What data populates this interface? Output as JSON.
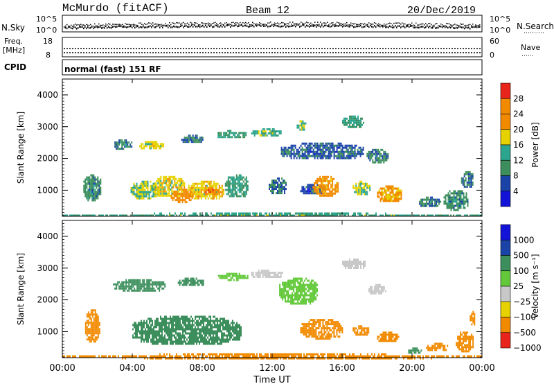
{
  "header": {
    "station": "McMurdo (fitACF)",
    "beam": "Beam 12",
    "date": "20/Dec/2019"
  },
  "noise_panel": {
    "left_label": "N.Sky",
    "right_label": "N.Search",
    "top_tick": "10^5",
    "bottom_tick": "10^0"
  },
  "freq_panel": {
    "left_label_1": "Freq.",
    "left_label_2": "[MHz]",
    "left_top": "18",
    "left_bottom": "8",
    "right_top": "60",
    "right_bottom": "0",
    "right_label": "Nave"
  },
  "cpid_panel": {
    "label": "CPID",
    "mode": "normal (fast) 151 RF"
  },
  "colors": {
    "dark_blue": "#1a43a8",
    "teal": "#2ca58f",
    "green": "#3c8f5c",
    "yellow": "#e6d200",
    "orange": "#f28a00",
    "red": "#e8241b",
    "gray": "#c8c8c8",
    "light_green": "#63c93a",
    "blue": "#1313d8"
  },
  "chart_data": [
    {
      "type": "heatmap",
      "name": "power",
      "ylabel": "Slant Range [km]",
      "xlabel": "Time UT",
      "yticks": [
        "1000",
        "2000",
        "3000",
        "4000"
      ],
      "ylim": [
        180,
        4500
      ],
      "xticks": [
        "00:00",
        "04:00",
        "08:00",
        "12:00",
        "16:00",
        "20:00",
        "00:00"
      ],
      "xlim": [
        0,
        24
      ],
      "colorbar": {
        "label": "Power [dB]",
        "ticks": [
          "4",
          "8",
          "12",
          "16",
          "20",
          "24",
          "28"
        ],
        "range": [
          0,
          30
        ]
      },
      "regions": [
        {
          "t": [
            1.2,
            2.2
          ],
          "r": [
            700,
            1500
          ],
          "v": 10
        },
        {
          "t": [
            3.9,
            5.5
          ],
          "r": [
            750,
            1300
          ],
          "v": 16
        },
        {
          "t": [
            5.2,
            7.0
          ],
          "r": [
            800,
            1450
          ],
          "v": 18
        },
        {
          "t": [
            6.2,
            7.4
          ],
          "r": [
            650,
            1050
          ],
          "v": 24
        },
        {
          "t": [
            7.2,
            9.2
          ],
          "r": [
            720,
            1300
          ],
          "v": 19
        },
        {
          "t": [
            8.1,
            8.9
          ],
          "r": [
            850,
            1100
          ],
          "v": 26
        },
        {
          "t": [
            9.3,
            10.6
          ],
          "r": [
            800,
            1500
          ],
          "v": 12
        },
        {
          "t": [
            11.8,
            12.8
          ],
          "r": [
            900,
            1400
          ],
          "v": 8
        },
        {
          "t": [
            13.6,
            15.0
          ],
          "r": [
            900,
            1200
          ],
          "v": 6
        },
        {
          "t": [
            14.3,
            15.8
          ],
          "r": [
            850,
            1450
          ],
          "v": 22
        },
        {
          "t": [
            16.6,
            17.6
          ],
          "r": [
            850,
            1300
          ],
          "v": 16
        },
        {
          "t": [
            18.0,
            19.4
          ],
          "r": [
            650,
            1150
          ],
          "v": 21
        },
        {
          "t": [
            20.4,
            21.6
          ],
          "r": [
            500,
            800
          ],
          "v": 9
        },
        {
          "t": [
            21.8,
            23.2
          ],
          "r": [
            400,
            1000
          ],
          "v": 10
        },
        {
          "t": [
            22.8,
            23.5
          ],
          "r": [
            1100,
            1600
          ],
          "v": 9
        },
        {
          "t": [
            2.9,
            4.0
          ],
          "r": [
            2300,
            2600
          ],
          "v": 9
        },
        {
          "t": [
            4.4,
            5.8
          ],
          "r": [
            2300,
            2550
          ],
          "v": 18
        },
        {
          "t": [
            6.8,
            8.0
          ],
          "r": [
            2500,
            2750
          ],
          "v": 8
        },
        {
          "t": [
            8.8,
            10.5
          ],
          "r": [
            2650,
            2900
          ],
          "v": 12
        },
        {
          "t": [
            10.8,
            12.5
          ],
          "r": [
            2700,
            2950
          ],
          "v": 14
        },
        {
          "t": [
            13.4,
            13.9
          ],
          "r": [
            2900,
            3200
          ],
          "v": 16
        },
        {
          "t": [
            12.5,
            17.2
          ],
          "r": [
            2000,
            2500
          ],
          "v": 7
        },
        {
          "t": [
            16.0,
            17.2
          ],
          "r": [
            3000,
            3350
          ],
          "v": 12
        },
        {
          "t": [
            17.4,
            18.6
          ],
          "r": [
            1900,
            2300
          ],
          "v": 9
        },
        {
          "t": [
            0.0,
            24.0
          ],
          "r": [
            180,
            300
          ],
          "v": 13
        }
      ]
    },
    {
      "type": "heatmap",
      "name": "velocity",
      "ylabel": "Slant Range [km]",
      "xlabel": "Time UT",
      "yticks": [
        "1000",
        "2000",
        "3000",
        "4000"
      ],
      "ylim": [
        180,
        4500
      ],
      "xticks": [
        "00:00",
        "04:00",
        "08:00",
        "12:00",
        "16:00",
        "20:00",
        "00:00"
      ],
      "xlim": [
        0,
        24
      ],
      "colorbar": {
        "label": "Velocity [m s⁻¹]",
        "ticks": [
          "1000",
          "500",
          "100",
          "25",
          "−25",
          "−100",
          "−500",
          "−1000"
        ]
      },
      "regions": [
        {
          "t": [
            1.3,
            2.1
          ],
          "r": [
            700,
            1700
          ],
          "v": -200
        },
        {
          "t": [
            4.0,
            10.2
          ],
          "r": [
            600,
            1500
          ],
          "v": 200
        },
        {
          "t": [
            13.6,
            16.0
          ],
          "r": [
            800,
            1400
          ],
          "v": -250
        },
        {
          "t": [
            16.6,
            17.5
          ],
          "r": [
            900,
            1200
          ],
          "v": -250
        },
        {
          "t": [
            18.0,
            19.2
          ],
          "r": [
            700,
            1000
          ],
          "v": -250
        },
        {
          "t": [
            19.7,
            20.5
          ],
          "r": [
            350,
            500
          ],
          "v": 200
        },
        {
          "t": [
            20.8,
            22.0
          ],
          "r": [
            400,
            650
          ],
          "v": -150
        },
        {
          "t": [
            22.5,
            23.5
          ],
          "r": [
            400,
            1000
          ],
          "v": -150
        },
        {
          "t": [
            23.3,
            23.6
          ],
          "r": [
            1200,
            1650
          ],
          "v": -150
        },
        {
          "t": [
            2.9,
            5.9
          ],
          "r": [
            2300,
            2650
          ],
          "v": 200
        },
        {
          "t": [
            6.6,
            8.1
          ],
          "r": [
            2450,
            2700
          ],
          "v": 200
        },
        {
          "t": [
            8.9,
            10.6
          ],
          "r": [
            2650,
            2850
          ],
          "v": 60
        },
        {
          "t": [
            10.8,
            12.6
          ],
          "r": [
            2700,
            2950
          ],
          "v": 10
        },
        {
          "t": [
            12.4,
            14.6
          ],
          "r": [
            1900,
            2700
          ],
          "v": 60
        },
        {
          "t": [
            16.0,
            17.3
          ],
          "r": [
            3000,
            3300
          ],
          "v": 0
        },
        {
          "t": [
            17.5,
            18.5
          ],
          "r": [
            2200,
            2500
          ],
          "v": 0
        },
        {
          "t": [
            0.0,
            24.0
          ],
          "r": [
            180,
            320
          ],
          "v": -150
        }
      ]
    }
  ]
}
